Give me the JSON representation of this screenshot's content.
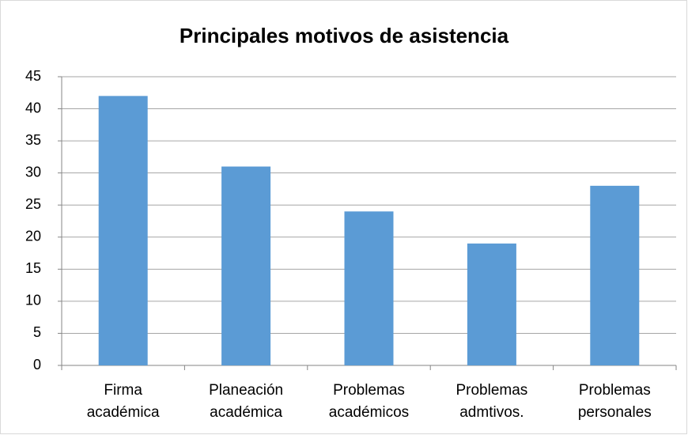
{
  "chart_data": {
    "type": "bar",
    "title": "Principales motivos de asistencia",
    "categories": [
      "Firma académica",
      "Planeación académica",
      "Problemas académicos",
      "Problemas admtivos.",
      "Problemas personales"
    ],
    "values": [
      42,
      31,
      24,
      19,
      28
    ],
    "color": "#5b9bd5",
    "ylim": [
      0,
      45
    ],
    "yticks": [
      0,
      5,
      10,
      15,
      20,
      25,
      30,
      35,
      40,
      45
    ],
    "grid": true
  }
}
